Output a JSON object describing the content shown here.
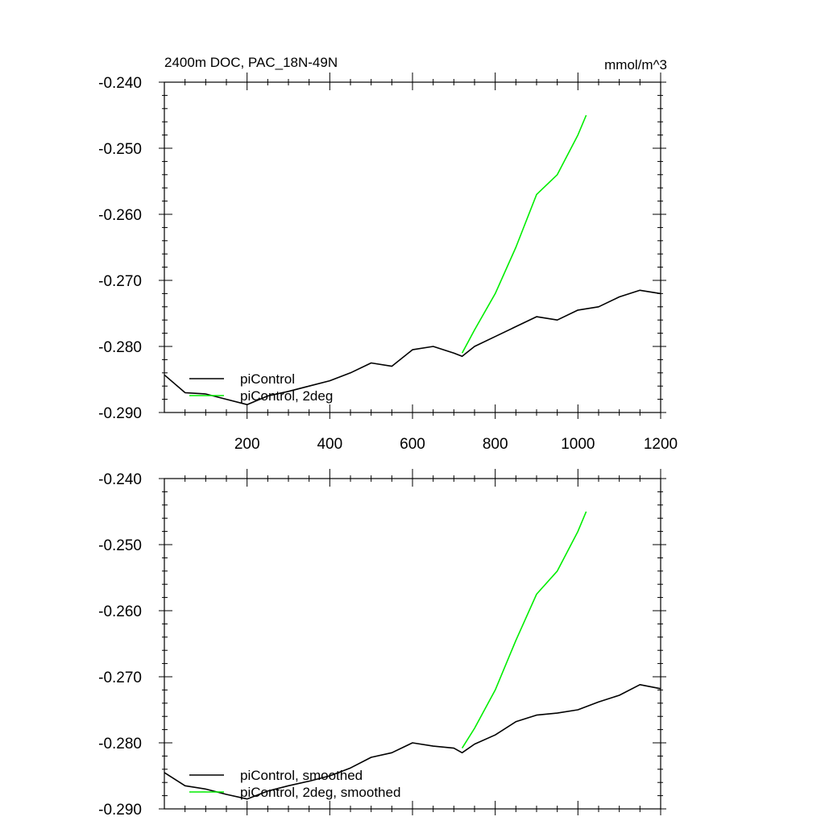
{
  "chart_data": [
    {
      "type": "line",
      "title": "2400m DOC, PAC_18N-49N",
      "units": "mmol/m^3",
      "xlim": [
        0,
        1200
      ],
      "ylim": [
        -0.29,
        -0.24
      ],
      "x_ticks": [
        200,
        400,
        600,
        800,
        1000,
        1200
      ],
      "x_tick_labels": [
        "200",
        "400",
        "600",
        "800",
        "1000",
        "1200"
      ],
      "y_ticks": [
        -0.24,
        -0.25,
        -0.26,
        -0.27,
        -0.28,
        -0.29
      ],
      "y_tick_labels": [
        "-0.240",
        "-0.250",
        "-0.260",
        "-0.270",
        "-0.280",
        "-0.290"
      ],
      "legend_position": "bottom-left",
      "series": [
        {
          "name": "piControl",
          "color": "#000000",
          "x": [
            0,
            50,
            100,
            150,
            200,
            250,
            300,
            350,
            400,
            450,
            500,
            550,
            600,
            650,
            700,
            720,
            750,
            800,
            850,
            900,
            950,
            1000,
            1050,
            1100,
            1150,
            1200
          ],
          "y": [
            -0.2843,
            -0.287,
            -0.2872,
            -0.288,
            -0.2888,
            -0.2875,
            -0.2868,
            -0.286,
            -0.2852,
            -0.284,
            -0.2825,
            -0.283,
            -0.2805,
            -0.28,
            -0.281,
            -0.2815,
            -0.28,
            -0.2785,
            -0.277,
            -0.2755,
            -0.276,
            -0.2745,
            -0.274,
            -0.2725,
            -0.2715,
            -0.272
          ]
        },
        {
          "name": "piControl, 2deg",
          "color": "#00ee00",
          "x": [
            720,
            750,
            800,
            850,
            900,
            950,
            1000,
            1020
          ],
          "y": [
            -0.281,
            -0.2775,
            -0.272,
            -0.265,
            -0.257,
            -0.254,
            -0.248,
            -0.245
          ]
        }
      ]
    },
    {
      "type": "line",
      "title": "",
      "units": "",
      "xlim": [
        0,
        1200
      ],
      "ylim": [
        -0.29,
        -0.24
      ],
      "x_ticks": [
        200,
        400,
        600,
        800,
        1000,
        1200
      ],
      "x_tick_labels": [],
      "y_ticks": [
        -0.24,
        -0.25,
        -0.26,
        -0.27,
        -0.28,
        -0.29
      ],
      "y_tick_labels": [
        "-0.240",
        "-0.250",
        "-0.260",
        "-0.270",
        "-0.280",
        "-0.290"
      ],
      "legend_position": "bottom-left",
      "series": [
        {
          "name": "piControl, smoothed",
          "color": "#000000",
          "x": [
            0,
            50,
            100,
            150,
            200,
            250,
            300,
            350,
            400,
            450,
            500,
            550,
            600,
            650,
            700,
            720,
            750,
            800,
            850,
            900,
            950,
            1000,
            1050,
            1100,
            1150,
            1200
          ],
          "y": [
            -0.2845,
            -0.2865,
            -0.287,
            -0.2878,
            -0.2885,
            -0.2873,
            -0.2865,
            -0.2858,
            -0.285,
            -0.2838,
            -0.2822,
            -0.2815,
            -0.28,
            -0.2805,
            -0.2808,
            -0.2815,
            -0.2802,
            -0.2788,
            -0.2768,
            -0.2758,
            -0.2755,
            -0.275,
            -0.2738,
            -0.2728,
            -0.2712,
            -0.2718
          ]
        },
        {
          "name": "piControl, 2deg, smoothed",
          "color": "#00ee00",
          "x": [
            720,
            750,
            800,
            850,
            900,
            950,
            1000,
            1020
          ],
          "y": [
            -0.2808,
            -0.2778,
            -0.272,
            -0.2645,
            -0.2575,
            -0.254,
            -0.248,
            -0.245
          ]
        }
      ]
    }
  ]
}
